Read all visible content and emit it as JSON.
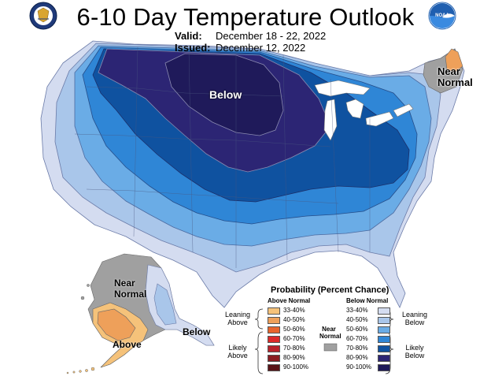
{
  "title": "6-10 Day Temperature Outlook",
  "valid_label": "Valid:",
  "valid_value": "December 18 - 22, 2022",
  "issued_label": "Issued:",
  "issued_value": "December 12, 2022",
  "left_logo_icon": "doc-seal-icon",
  "right_logo_icon": "noaa-logo-icon",
  "map_labels": {
    "below_conus": "Below",
    "near_normal_ne": "Near Normal",
    "near_normal_ak": "Near Normal",
    "above_ak": "Above",
    "below_ak": "Below"
  },
  "legend": {
    "title": "Probability (Percent Chance)",
    "above_header": "Above Normal",
    "below_header": "Below Normal",
    "near_label": "Near Normal",
    "near_color": "#a0a0a0",
    "leaning_above": "Leaning Above",
    "likely_above": "Likely Above",
    "leaning_below": "Leaning Below",
    "likely_below": "Likely Below",
    "above": [
      {
        "range": "33-40%",
        "color": "#f5c27a"
      },
      {
        "range": "40-50%",
        "color": "#eea05a"
      },
      {
        "range": "50-60%",
        "color": "#e8642c"
      },
      {
        "range": "60-70%",
        "color": "#dc2a2a"
      },
      {
        "range": "70-80%",
        "color": "#b8222c"
      },
      {
        "range": "80-90%",
        "color": "#8a1c22"
      },
      {
        "range": "90-100%",
        "color": "#5a1418"
      }
    ],
    "below": [
      {
        "range": "33-40%",
        "color": "#d4dcf0"
      },
      {
        "range": "40-50%",
        "color": "#a9c6ea"
      },
      {
        "range": "50-60%",
        "color": "#6aace6"
      },
      {
        "range": "60-70%",
        "color": "#2f86d6"
      },
      {
        "range": "70-80%",
        "color": "#0f52a0"
      },
      {
        "range": "80-90%",
        "color": "#2c2574"
      },
      {
        "range": "90-100%",
        "color": "#1f1a5a"
      }
    ]
  }
}
